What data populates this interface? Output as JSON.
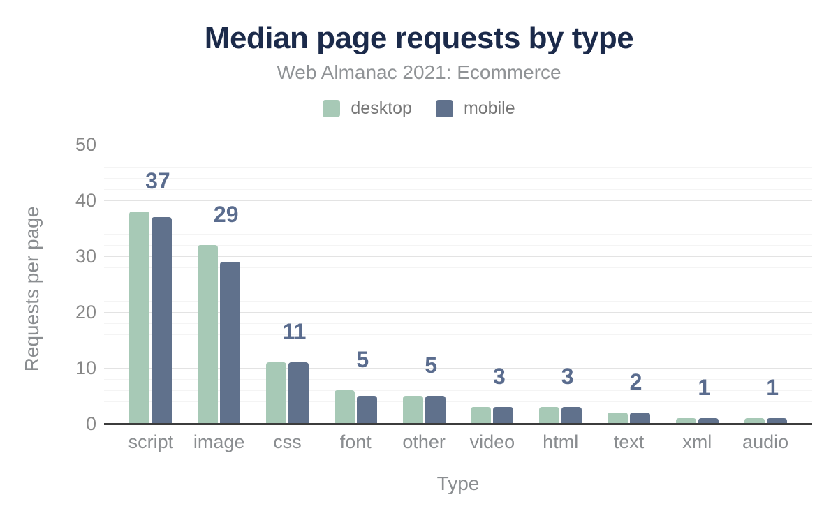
{
  "chart_data": {
    "type": "bar",
    "title": "Median page requests by type",
    "subtitle": "Web Almanac 2021: Ecommerce",
    "categories": [
      "script",
      "image",
      "css",
      "font",
      "other",
      "video",
      "html",
      "text",
      "xml",
      "audio"
    ],
    "series": [
      {
        "name": "desktop",
        "color": "#a7c9b6",
        "values": [
          38,
          32,
          11,
          6,
          5,
          3,
          3,
          2,
          1,
          1
        ]
      },
      {
        "name": "mobile",
        "color": "#60718c",
        "values": [
          37,
          29,
          11,
          5,
          5,
          3,
          3,
          2,
          1,
          1
        ]
      }
    ],
    "data_labels": {
      "series": "mobile",
      "values": [
        37,
        29,
        11,
        5,
        5,
        3,
        3,
        2,
        1,
        1
      ],
      "color": "#5a6c8e"
    },
    "xlabel": "Type",
    "ylabel": "Requests per page",
    "ylim": [
      0,
      50
    ],
    "yticks": [
      0,
      10,
      20,
      30,
      40,
      50
    ],
    "grid": {
      "major_step": 10,
      "minor_step": 2,
      "major_color": "#e3e3e3",
      "minor_color": "#f4f4f4",
      "baseline_color": "#3c3c3c"
    },
    "legend_position": "top"
  }
}
